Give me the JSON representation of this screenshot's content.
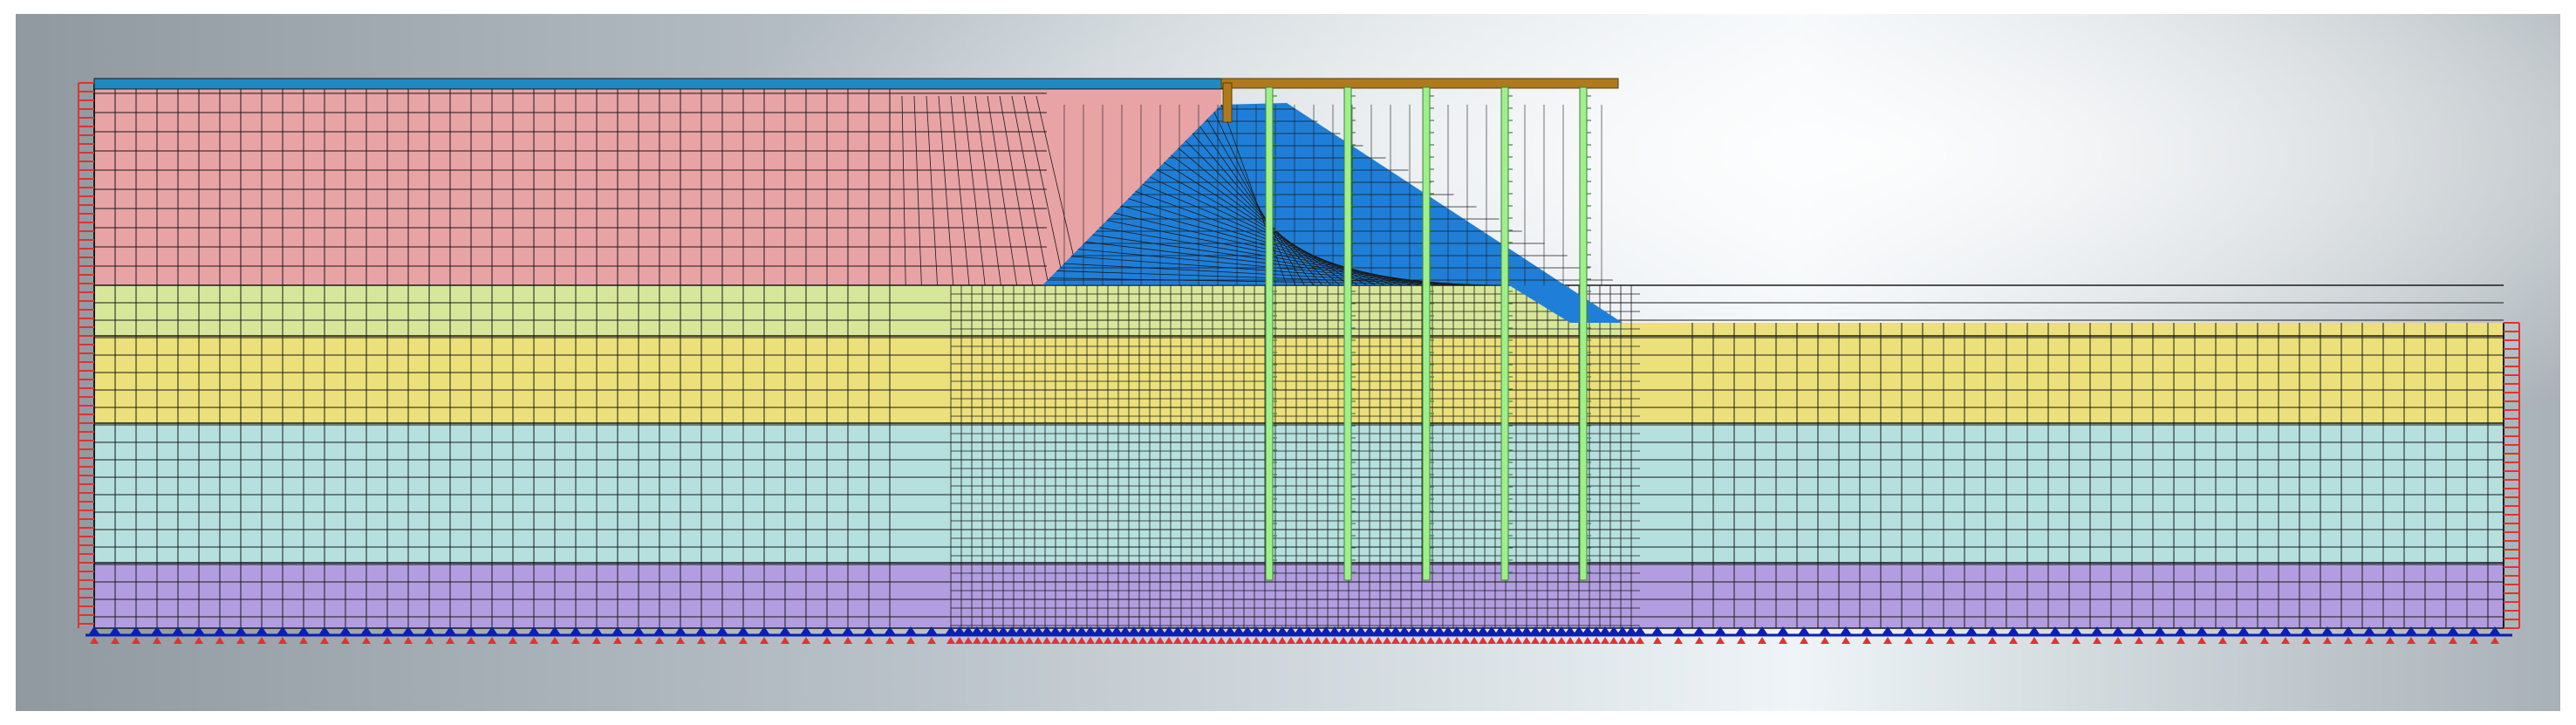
{
  "diagram": {
    "kind": "finite-element mesh of an embankment over layered soil with pile reinforcement",
    "colors": {
      "backdrop_light": "#f4f8fa",
      "backdrop_mid": "#c3ccd2",
      "backdrop_dark": "#8a949c",
      "layer_embankment_fill": "#e8a3a5",
      "layer_yellow_green": "#d7e79a",
      "layer_yellow": "#ebe07a",
      "layer_cyan": "#b5e0de",
      "layer_purple": "#b19ddf",
      "embankment_core": "#1f7fd8",
      "top_strip": "#1f8ac2",
      "cap_beam": "#b07a1c",
      "pile": "#9ff08a",
      "pile_tick": "#3a8a3a",
      "mesh_line": "#1a1a1a",
      "boundary_red": "#e53030",
      "support_blue": "#0b1fb5"
    },
    "piles_count": 5,
    "soil_layers": [
      "embankment-fill",
      "upper-yellow-green",
      "yellow",
      "cyan",
      "purple"
    ]
  }
}
